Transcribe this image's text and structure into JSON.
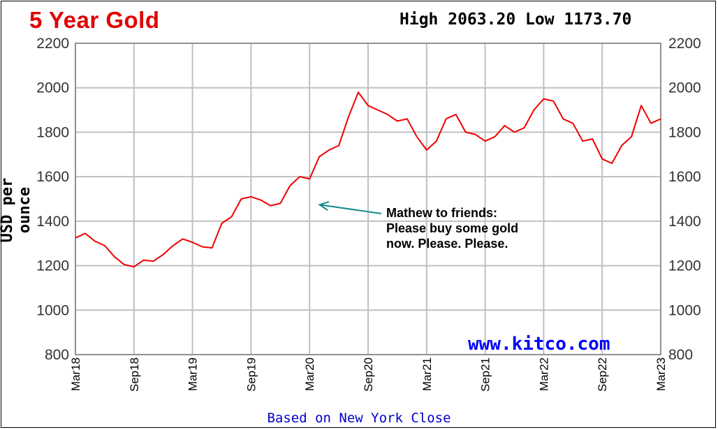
{
  "title": "5 Year Gold",
  "hilo": "High 2063.20 Low 1173.70",
  "footer": "Based on New York Close",
  "source": "www.kitco.com",
  "annotation": {
    "lines": [
      "Mathew to friends:",
      "Please buy some gold",
      "now. Please. Please."
    ],
    "target": {
      "date": "2020-03-19",
      "value": 1474
    }
  },
  "colors": {
    "series": "#ee0000",
    "title": "#e00000",
    "arrow": "#138a8a",
    "grid": "#c0c0c0",
    "source": "#0000ff"
  },
  "chart_data": {
    "type": "line",
    "title": "5 Year Gold",
    "ylabel": "USD per ounce",
    "xlabel": "",
    "ylim": [
      800,
      2200
    ],
    "yticks": [
      800,
      1000,
      1200,
      1400,
      1600,
      1800,
      2000,
      2200
    ],
    "y_axis_both_sides": true,
    "grid": true,
    "xticks": [
      "Mar18",
      "Sep18",
      "Mar19",
      "Sep19",
      "Mar20",
      "Sep20",
      "Mar21",
      "Sep21",
      "Mar22",
      "Sep22",
      "Mar23"
    ],
    "series": [
      {
        "x": [
          "2018-03",
          "2018-04",
          "2018-05",
          "2018-06",
          "2018-07",
          "2018-08",
          "2018-09",
          "2018-10",
          "2018-11",
          "2018-12",
          "2019-01",
          "2019-02",
          "2019-03",
          "2019-04",
          "2019-05",
          "2019-06",
          "2019-07",
          "2019-08",
          "2019-09",
          "2019-10",
          "2019-11",
          "2019-12",
          "2020-01",
          "2020-02",
          "2020-03",
          "2020-04",
          "2020-05",
          "2020-06",
          "2020-07",
          "2020-08",
          "2020-09",
          "2020-10",
          "2020-11",
          "2020-12",
          "2021-01",
          "2021-02",
          "2021-03",
          "2021-04",
          "2021-05",
          "2021-06",
          "2021-07",
          "2021-08",
          "2021-09",
          "2021-10",
          "2021-11",
          "2021-12",
          "2022-01",
          "2022-02",
          "2022-03",
          "2022-04",
          "2022-05",
          "2022-06",
          "2022-07",
          "2022-08",
          "2022-09",
          "2022-10",
          "2022-11",
          "2022-12",
          "2023-01",
          "2023-02",
          "2023-03"
        ],
        "values": [
          1325,
          1345,
          1310,
          1290,
          1240,
          1205,
          1195,
          1225,
          1220,
          1250,
          1290,
          1320,
          1305,
          1285,
          1280,
          1390,
          1420,
          1500,
          1510,
          1495,
          1470,
          1480,
          1560,
          1600,
          1590,
          1690,
          1720,
          1740,
          1870,
          1980,
          1920,
          1900,
          1880,
          1850,
          1860,
          1780,
          1720,
          1760,
          1860,
          1880,
          1800,
          1790,
          1760,
          1780,
          1830,
          1800,
          1820,
          1900,
          1950,
          1940,
          1860,
          1840,
          1760,
          1770,
          1680,
          1660,
          1740,
          1780,
          1920,
          1840,
          1860
        ]
      }
    ]
  }
}
